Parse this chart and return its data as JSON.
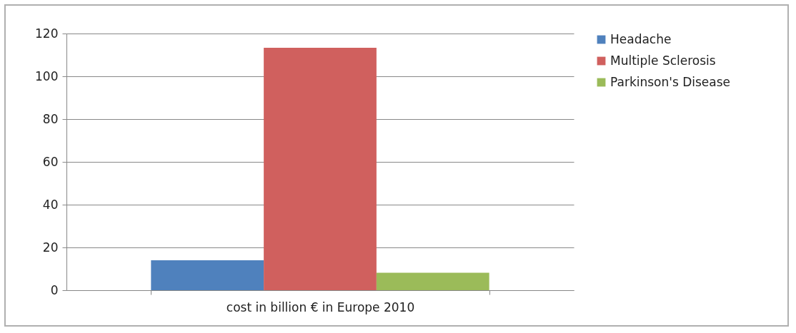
{
  "chart_data": {
    "type": "bar",
    "categories": [
      "cost in billion € in Europe 2010"
    ],
    "series": [
      {
        "name": "Headache",
        "color": "#4f81bd",
        "values": [
          14
        ]
      },
      {
        "name": "Multiple Sclerosis",
        "color": "#d0605e",
        "values": [
          113.3
        ]
      },
      {
        "name": "Parkinson's Disease",
        "color": "#9bbb59",
        "values": [
          8.2
        ]
      }
    ],
    "ylim": [
      0,
      120
    ],
    "yticks": [
      0,
      20,
      40,
      60,
      80,
      100,
      120
    ],
    "grid": "y",
    "legend": "right"
  }
}
